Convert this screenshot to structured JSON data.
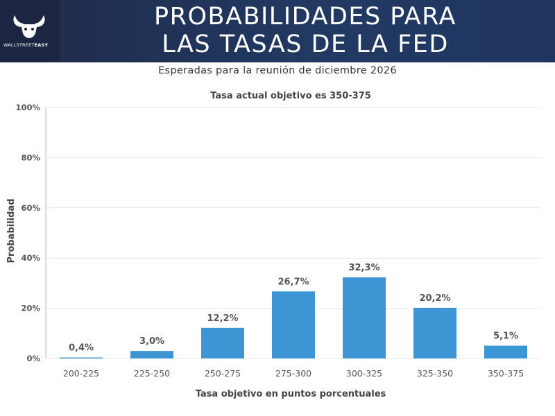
{
  "brand": {
    "logo_text_a": "WALLSTREET",
    "logo_text_b": "EASY"
  },
  "header": {
    "title_line1": "PROBABILIDADES PARA",
    "title_line2": "LAS TASAS DE LA FED"
  },
  "subtitle": "Esperadas para la reunión de diciembre 2026",
  "colors": {
    "bar": "#3d95d4",
    "header_bg": "#1f2b4a",
    "text": "#444444"
  },
  "chart_data": {
    "type": "bar",
    "title": "Tasa actual objetivo es 350-375",
    "xlabel": "Tasa objetivo en puntos porcentuales",
    "ylabel": "Probabilidad",
    "categories": [
      "200-225",
      "225-250",
      "250-275",
      "275-300",
      "300-325",
      "325-350",
      "350-375"
    ],
    "values": [
      0.4,
      3.0,
      12.2,
      26.7,
      32.3,
      20.2,
      5.1
    ],
    "value_labels": [
      "0,4%",
      "3,0%",
      "12,2%",
      "26,7%",
      "32,3%",
      "20,2%",
      "5,1%"
    ],
    "ylim": [
      0,
      100
    ],
    "yticks": [
      0,
      20,
      40,
      60,
      80,
      100
    ],
    "ytick_labels": [
      "0%",
      "20%",
      "40%",
      "60%",
      "80%",
      "100%"
    ]
  }
}
